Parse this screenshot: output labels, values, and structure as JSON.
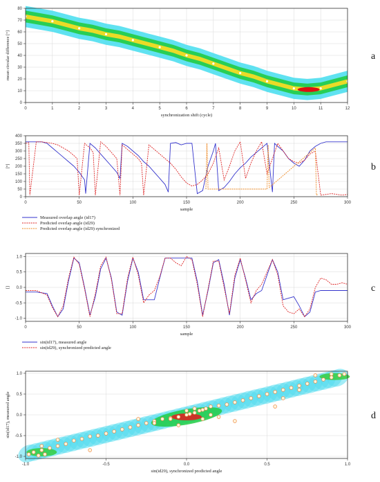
{
  "chart_data": [
    {
      "type": "scatter",
      "panel_label": "a",
      "xlabel": "synchronization shift (cycle)",
      "ylabel": "mean circular difference [°]",
      "xlim": [
        0,
        12
      ],
      "ylim": [
        0,
        80
      ],
      "xticks": [
        "0",
        "1",
        "2",
        "3",
        "4",
        "5",
        "6",
        "7",
        "8",
        "9",
        "10",
        "11",
        "12"
      ],
      "yticks": [
        "0",
        "10",
        "20",
        "30",
        "40",
        "50",
        "60",
        "70",
        "80"
      ],
      "grid": true,
      "x": [
        0,
        0.5,
        1,
        1.5,
        2,
        2.5,
        3,
        3.5,
        4,
        4.5,
        5,
        5.5,
        6,
        6.5,
        7,
        7.5,
        8,
        8.5,
        9,
        9.5,
        10,
        10.5,
        11,
        11.5,
        12
      ],
      "y": [
        73,
        71,
        69,
        66,
        63,
        61,
        58,
        56,
        53,
        50,
        47,
        44,
        40,
        37,
        33,
        29,
        25,
        22,
        18,
        15,
        12,
        11,
        12,
        15,
        18
      ]
    },
    {
      "type": "line",
      "panel_label": "b",
      "xlabel": "sample",
      "ylabel": "[°]",
      "xlim": [
        0,
        300
      ],
      "ylim": [
        0,
        400
      ],
      "xticks": [
        "0",
        "50",
        "100",
        "150",
        "200",
        "250",
        "300"
      ],
      "yticks": [
        "0",
        "50",
        "100",
        "150",
        "200",
        "250",
        "300",
        "350",
        "400"
      ],
      "grid": true,
      "legend": "bottom-left",
      "series": [
        {
          "name": "Measured overlap angle (id17)",
          "color": "#3333cc",
          "x": [
            0,
            5,
            10,
            15,
            20,
            25,
            30,
            35,
            40,
            45,
            50,
            55,
            56,
            60,
            65,
            70,
            75,
            80,
            85,
            88,
            90,
            95,
            100,
            105,
            110,
            115,
            120,
            125,
            130,
            133,
            135,
            140,
            145,
            150,
            155,
            160,
            165,
            170,
            175,
            177,
            180,
            185,
            190,
            195,
            200,
            205,
            210,
            215,
            220,
            225,
            230,
            232,
            235,
            240,
            245,
            250,
            255,
            260,
            265,
            270,
            275,
            280,
            285,
            290,
            295,
            300
          ],
          "y": [
            360,
            360,
            360,
            360,
            350,
            320,
            290,
            260,
            230,
            200,
            160,
            110,
            20,
            350,
            320,
            280,
            240,
            200,
            160,
            120,
            350,
            330,
            300,
            270,
            230,
            200,
            160,
            120,
            80,
            30,
            350,
            355,
            340,
            350,
            350,
            20,
            40,
            200,
            300,
            350,
            40,
            60,
            100,
            150,
            190,
            220,
            260,
            290,
            320,
            350,
            30,
            350,
            330,
            300,
            250,
            220,
            200,
            240,
            300,
            330,
            350,
            360,
            360,
            360,
            360,
            360
          ]
        },
        {
          "name": "Predicted overlap angle (id29)",
          "color": "#dd2222",
          "x": [
            0,
            3,
            4,
            10,
            15,
            20,
            25,
            30,
            35,
            40,
            45,
            48,
            50,
            55,
            60,
            63,
            65,
            70,
            75,
            80,
            85,
            88,
            90,
            95,
            100,
            105,
            108,
            110,
            115,
            120,
            125,
            130,
            135,
            140,
            145,
            150,
            155,
            160,
            165,
            170,
            175,
            180,
            185,
            190,
            195,
            200,
            205,
            210,
            215,
            220,
            225,
            230,
            235,
            240,
            245,
            250,
            255,
            260,
            265,
            270,
            275,
            280,
            285,
            290,
            295,
            300
          ],
          "y": [
            350,
            355,
            10,
            360,
            360,
            355,
            350,
            340,
            320,
            300,
            270,
            250,
            10,
            350,
            320,
            290,
            10,
            360,
            330,
            290,
            250,
            10,
            340,
            310,
            280,
            250,
            220,
            10,
            340,
            310,
            280,
            250,
            220,
            180,
            130,
            90,
            70,
            80,
            110,
            150,
            220,
            320,
            110,
            200,
            300,
            360,
            120,
            220,
            300,
            360,
            150,
            250,
            350,
            300,
            250,
            230,
            220,
            240,
            280,
            300,
            10,
            15,
            20,
            15,
            10,
            15
          ]
        },
        {
          "name": "Predicted overlap angle (id29) synchronized",
          "color": "#ee8822",
          "x": [
            168,
            169,
            170,
            225,
            226,
            227,
            270,
            271,
            272
          ],
          "y": [
            50,
            350,
            50,
            50,
            340,
            60,
            320,
            10,
            15
          ]
        }
      ]
    },
    {
      "type": "line",
      "panel_label": "c",
      "xlabel": "sample",
      "ylabel": "[]",
      "xlim": [
        0,
        300
      ],
      "ylim": [
        -1.1,
        1.1
      ],
      "xticks": [
        "0",
        "50",
        "100",
        "150",
        "200",
        "250",
        "300"
      ],
      "yticks": [
        "-1.0",
        "-0.5",
        "0.0",
        "0.5",
        "1.0"
      ],
      "grid": true,
      "legend": "bottom-left",
      "series": [
        {
          "name": "sin(id17), measured angle",
          "color": "#3333cc",
          "x": [
            0,
            10,
            20,
            25,
            30,
            35,
            40,
            45,
            50,
            55,
            60,
            65,
            70,
            75,
            80,
            85,
            90,
            95,
            100,
            105,
            110,
            115,
            120,
            125,
            130,
            135,
            140,
            145,
            150,
            155,
            160,
            165,
            170,
            175,
            180,
            185,
            190,
            195,
            200,
            205,
            210,
            215,
            220,
            225,
            230,
            235,
            240,
            245,
            250,
            255,
            260,
            265,
            270,
            275,
            280,
            285,
            290,
            295,
            300
          ],
          "y": [
            -0.15,
            -0.15,
            -0.2,
            -0.6,
            -0.95,
            -0.7,
            0.2,
            0.95,
            0.8,
            0,
            -0.9,
            -0.3,
            0.6,
            0.95,
            0.3,
            -0.8,
            -0.9,
            0.2,
            0.95,
            0.5,
            -0.4,
            -0.4,
            -0.4,
            0.3,
            0.95,
            0.95,
            0.95,
            0.95,
            0.95,
            0.95,
            0.2,
            -0.9,
            -0.1,
            0.8,
            0.9,
            0.1,
            -0.9,
            0.3,
            0.9,
            0.3,
            -0.4,
            -0.2,
            -0.1,
            0.4,
            0.9,
            0.5,
            -0.4,
            -0.35,
            -0.3,
            -0.6,
            -0.95,
            -0.8,
            -0.15,
            -0.1,
            -0.1,
            -0.1,
            -0.1,
            -0.1,
            -0.1
          ]
        },
        {
          "name": "sin(id29), synchronized predicted angle",
          "color": "#dd2222",
          "x": [
            0,
            10,
            20,
            25,
            30,
            35,
            40,
            45,
            50,
            55,
            60,
            65,
            70,
            75,
            80,
            85,
            90,
            95,
            100,
            105,
            110,
            115,
            120,
            125,
            130,
            135,
            140,
            145,
            150,
            155,
            160,
            165,
            170,
            175,
            180,
            185,
            190,
            195,
            200,
            205,
            210,
            215,
            220,
            225,
            230,
            235,
            240,
            245,
            250,
            255,
            260,
            265,
            270,
            275,
            280,
            285,
            290,
            295,
            300
          ],
          "y": [
            -0.1,
            -0.1,
            -0.25,
            -0.65,
            -0.95,
            -0.6,
            0.3,
            0.98,
            0.75,
            -0.05,
            -0.95,
            -0.2,
            0.7,
            0.98,
            0.25,
            -0.85,
            -0.85,
            0.3,
            0.98,
            0.4,
            -0.5,
            -0.25,
            -0.1,
            0.35,
            0.95,
            0.95,
            0.8,
            0.7,
            1.0,
            0.9,
            0.1,
            -0.95,
            -0.05,
            0.85,
            0.85,
            0.0,
            -0.85,
            0.4,
            0.95,
            0.25,
            -0.5,
            -0.1,
            0.1,
            0.5,
            0.9,
            0.4,
            -0.6,
            -0.8,
            -0.85,
            -0.7,
            -0.95,
            -0.7,
            0.0,
            0.3,
            0.25,
            0.1,
            0.1,
            0.15,
            0.1
          ]
        }
      ]
    },
    {
      "type": "scatter",
      "panel_label": "d",
      "xlabel": "sin(id29), synchronized predicted angle",
      "ylabel": "sin(id17), measured angle",
      "xlim": [
        -1.0,
        1.0
      ],
      "ylim": [
        -1.05,
        1.05
      ],
      "xticks": [
        "-1.0",
        "-0.5",
        "0.0",
        "0.5",
        "1.0"
      ],
      "yticks": [
        "-1.0",
        "-0.5",
        "0.0",
        "0.5",
        "1.0"
      ],
      "grid": true,
      "x": [
        -0.98,
        -0.95,
        -0.92,
        -0.9,
        -0.88,
        -0.85,
        -0.8,
        -0.75,
        -0.7,
        -0.65,
        -0.6,
        -0.55,
        -0.5,
        -0.45,
        -0.4,
        -0.35,
        -0.3,
        -0.25,
        -0.2,
        -0.15,
        -0.1,
        -0.05,
        0.0,
        0.02,
        0.05,
        0.08,
        0.1,
        0.12,
        0.15,
        0.2,
        0.25,
        0.3,
        0.35,
        0.4,
        0.45,
        0.5,
        0.55,
        0.6,
        0.65,
        0.7,
        0.75,
        0.8,
        0.85,
        0.9,
        0.95,
        0.98,
        -0.2,
        -0.1,
        0.0,
        0.1,
        0.2,
        -0.05,
        0.05,
        0.15,
        -0.3,
        0.3,
        -0.6,
        -0.8,
        0.6,
        0.8,
        0.55,
        0.7,
        -0.9,
        0.9
      ],
      "y": [
        -0.95,
        -0.9,
        -0.98,
        -0.85,
        -0.95,
        -0.8,
        -0.75,
        -0.7,
        -0.62,
        -0.58,
        -0.52,
        -0.5,
        -0.45,
        -0.4,
        -0.35,
        -0.3,
        -0.25,
        -0.2,
        -0.15,
        -0.1,
        -0.08,
        -0.05,
        0.0,
        0.02,
        0.05,
        0.1,
        0.12,
        0.15,
        0.2,
        0.22,
        0.25,
        0.3,
        0.35,
        0.4,
        0.45,
        0.5,
        0.55,
        0.6,
        0.65,
        0.7,
        0.75,
        0.8,
        0.85,
        0.9,
        0.95,
        0.98,
        -0.2,
        -0.1,
        0.1,
        -0.1,
        -0.05,
        -0.25,
        0.15,
        0.0,
        -0.1,
        -0.15,
        -0.85,
        -0.6,
        0.4,
        0.95,
        0.2,
        0.6,
        -0.75,
        0.98
      ]
    }
  ]
}
